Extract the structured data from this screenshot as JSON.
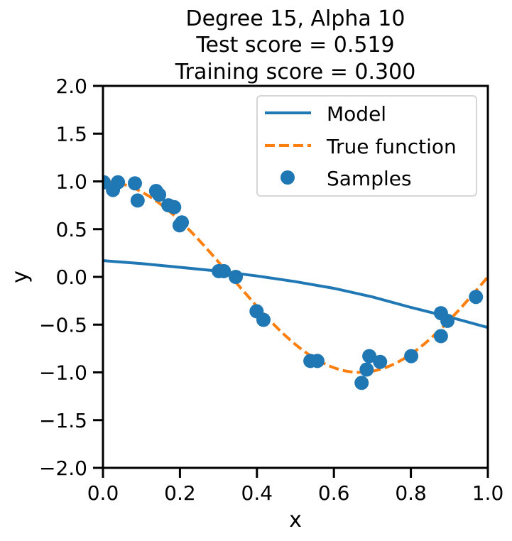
{
  "chart_data": {
    "type": "scatter",
    "title_lines": [
      "Degree 15, Alpha 10",
      "Test score = 0.519",
      "Training score = 0.300"
    ],
    "xlabel": "x",
    "ylabel": "y",
    "xlim": [
      0.0,
      1.0
    ],
    "ylim": [
      -2.0,
      2.0
    ],
    "xticks": [
      0.0,
      0.2,
      0.4,
      0.6,
      0.8,
      1.0
    ],
    "xtick_labels": [
      "0.0",
      "0.2",
      "0.4",
      "0.6",
      "0.8",
      "1.0"
    ],
    "yticks": [
      2.0,
      1.5,
      1.0,
      0.5,
      0.0,
      -0.5,
      -1.0,
      -1.5,
      -2.0
    ],
    "ytick_labels": [
      "2.0",
      "1.5",
      "1.0",
      "0.5",
      "0.0",
      "−0.5",
      "−1.0",
      "−1.5",
      "−2.0"
    ],
    "grid": false,
    "legend": {
      "placement": "top-right",
      "entries": [
        {
          "label": "Model",
          "style": "solid-line",
          "color": "#1f77b4"
        },
        {
          "label": "True function",
          "style": "dashed-line",
          "color": "#ff7f0e"
        },
        {
          "label": "Samples",
          "style": "marker",
          "color": "#1f77b4"
        }
      ]
    },
    "series": [
      {
        "name": "Model",
        "kind": "line",
        "color": "#1f77b4",
        "x": [
          0.0,
          0.1,
          0.2,
          0.3,
          0.4,
          0.5,
          0.6,
          0.7,
          0.8,
          0.9,
          1.0
        ],
        "y": [
          0.17,
          0.14,
          0.1,
          0.06,
          0.01,
          -0.05,
          -0.12,
          -0.21,
          -0.32,
          -0.42,
          -0.53
        ]
      },
      {
        "name": "True function",
        "kind": "dashed-line",
        "color": "#ff7f0e",
        "function": "cos(1.5*pi*x)"
      },
      {
        "name": "Samples",
        "kind": "scatter",
        "color": "#1f77b4",
        "x": [
          0.002,
          0.026,
          0.039,
          0.083,
          0.09,
          0.138,
          0.146,
          0.17,
          0.185,
          0.199,
          0.205,
          0.301,
          0.314,
          0.345,
          0.399,
          0.417,
          0.539,
          0.557,
          0.672,
          0.685,
          0.692,
          0.72,
          0.801,
          0.878,
          0.878,
          0.895,
          0.969
        ],
        "y": [
          0.99,
          0.91,
          0.99,
          0.98,
          0.8,
          0.9,
          0.86,
          0.75,
          0.73,
          0.54,
          0.57,
          0.06,
          0.06,
          0.0,
          -0.36,
          -0.45,
          -0.88,
          -0.88,
          -1.11,
          -0.97,
          -0.83,
          -0.89,
          -0.83,
          -0.62,
          -0.38,
          -0.46,
          -0.21
        ]
      }
    ]
  }
}
